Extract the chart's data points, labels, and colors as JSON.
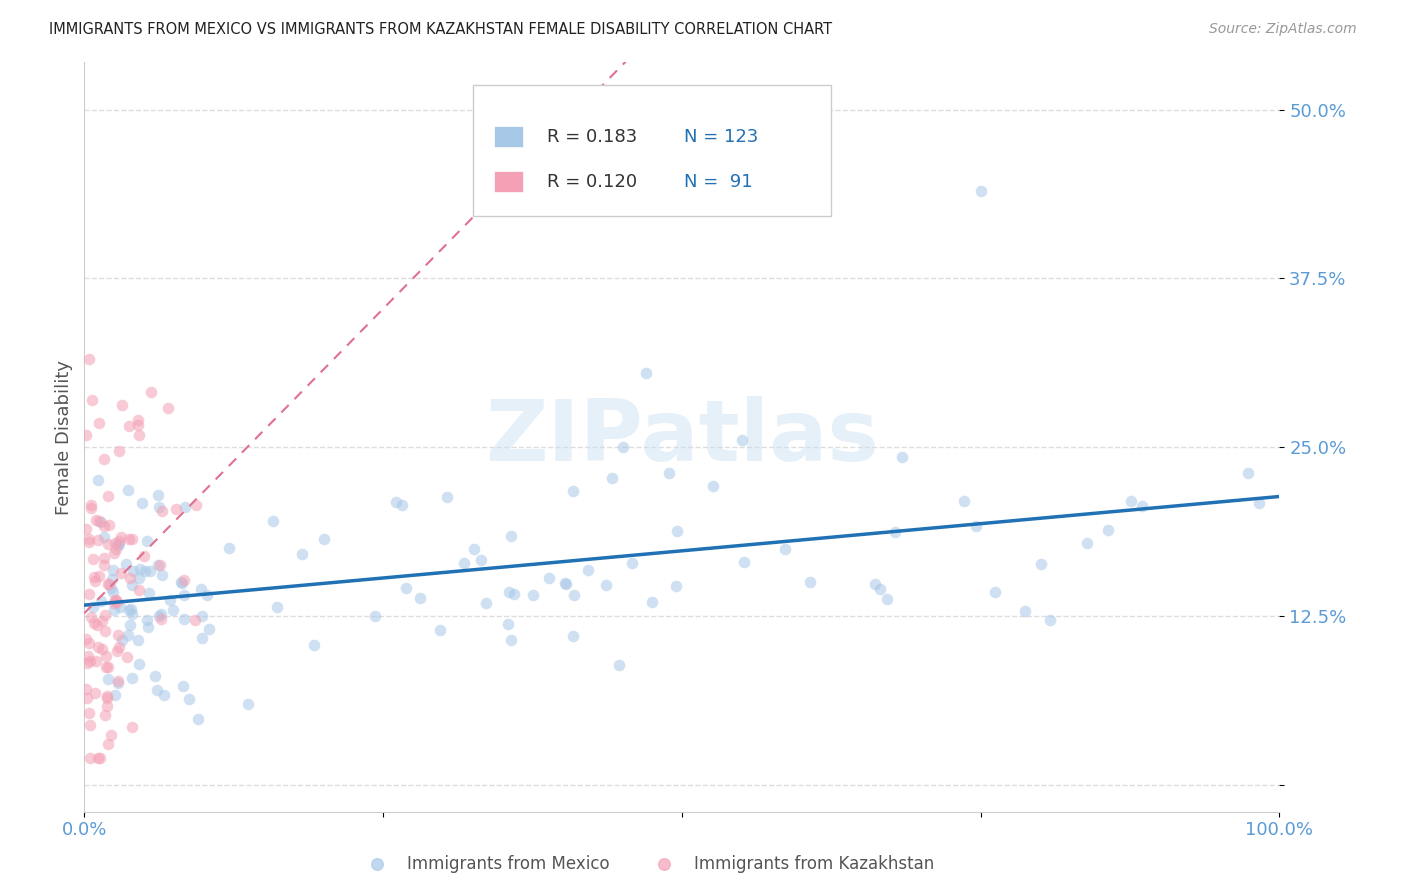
{
  "title": "IMMIGRANTS FROM MEXICO VS IMMIGRANTS FROM KAZAKHSTAN FEMALE DISABILITY CORRELATION CHART",
  "source": "Source: ZipAtlas.com",
  "ylabel": "Female Disability",
  "mexico_R": 0.183,
  "mexico_N": 123,
  "kazakhstan_R": 0.12,
  "kazakhstan_N": 91,
  "mexico_color": "#a8c8e8",
  "kazakhstan_color": "#f4a0b5",
  "mexico_line_color": "#2171b5",
  "kazakhstan_line_color": "#e07090",
  "watermark": "ZIPatlas",
  "background_color": "#ffffff",
  "grid_color": "#cccccc",
  "legend_label_mexico": "Immigrants from Mexico",
  "legend_label_kazakhstan": "Immigrants from Kazakhstan",
  "title_color": "#222222",
  "axis_tick_color": "#5b9bd5",
  "scatter_alpha": 0.55,
  "scatter_size": 70,
  "xlim": [
    0.0,
    1.0
  ],
  "ylim": [
    -0.02,
    0.535
  ]
}
